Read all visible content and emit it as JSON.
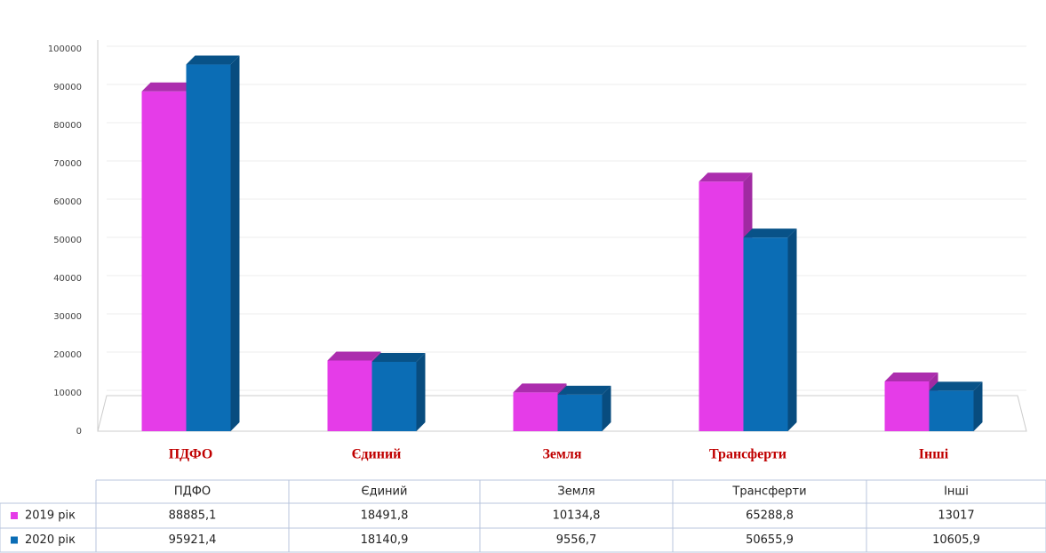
{
  "chart_data": {
    "type": "bar",
    "categories": [
      "ПДФО",
      "Єдиний",
      "Земля",
      "Трансферти",
      "Інші"
    ],
    "series": [
      {
        "name": "2019 рік",
        "color": "#e53ce8",
        "values": [
          88885.1,
          18491.8,
          10134.8,
          65288.8,
          13017
        ],
        "value_labels": [
          "88885,1",
          "18491,8",
          "10134,8",
          "65288,8",
          "13017"
        ]
      },
      {
        "name": "2020 рік",
        "color": "#0b6db5",
        "values": [
          95921.4,
          18140.9,
          9556.7,
          50655.9,
          10605.9
        ],
        "value_labels": [
          "95921,4",
          "18140,9",
          "9556,7",
          "50655,9",
          "10605,9"
        ]
      }
    ],
    "ylim": [
      0,
      100000
    ],
    "yticks": [
      0,
      10000,
      20000,
      30000,
      40000,
      50000,
      60000,
      70000,
      80000,
      90000,
      100000
    ],
    "grid": true
  }
}
